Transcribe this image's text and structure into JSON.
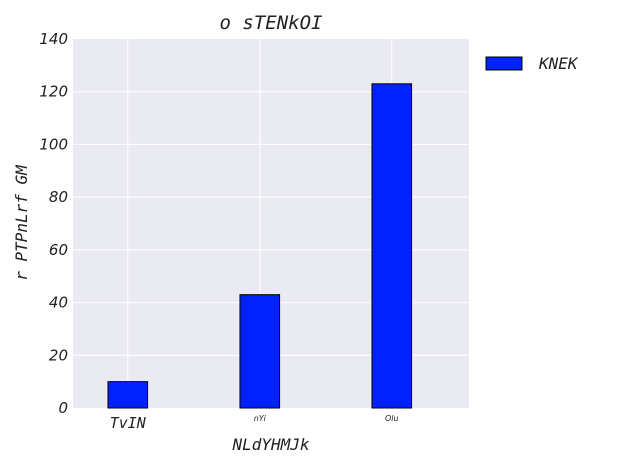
{
  "chart_data": {
    "type": "bar",
    "title": "o sTENkOI",
    "xlabel": "NLdYHMJk",
    "ylabel": "r PTPnLrf GM",
    "categories": [
      "TvIN",
      "nYi",
      "Olu"
    ],
    "series": [
      {
        "name": "KNEK",
        "values": [
          10,
          43,
          123
        ],
        "color": "#0022ff"
      }
    ],
    "ylim": [
      0,
      140
    ],
    "yticks": [
      "0",
      "20",
      "40",
      "60",
      "80",
      "100",
      "120",
      "140"
    ],
    "grid": true,
    "legend": "top-right (outside plot)",
    "colors": {
      "plot_background": "#eaeaf2",
      "grid": "#ffffff",
      "bar_edge": "#000000"
    }
  }
}
